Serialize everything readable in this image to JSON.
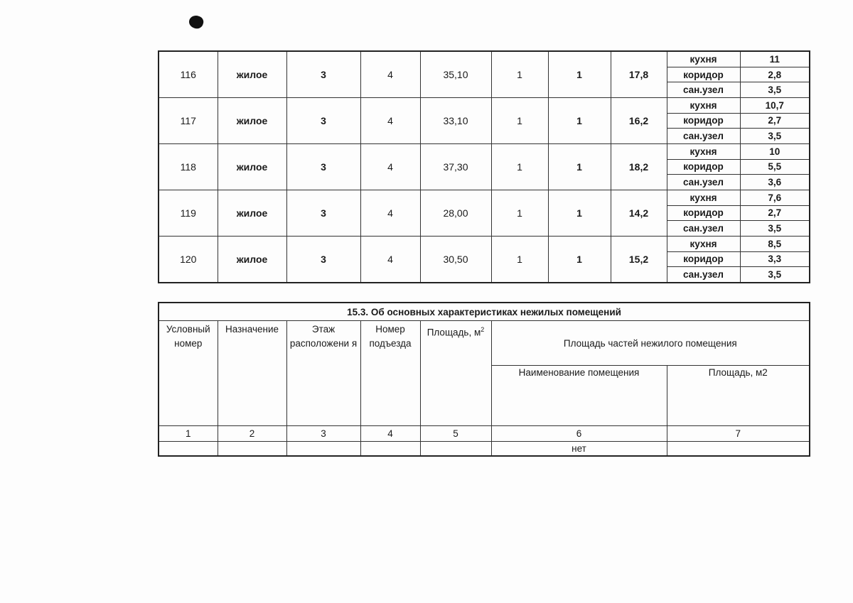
{
  "apartments": [
    {
      "number": "116",
      "purpose": "жилое",
      "floor": "3",
      "entrance": "4",
      "area": "35,10",
      "col6": "1",
      "col7": "1",
      "living": "17,8",
      "parts": [
        {
          "name": "кухня",
          "area": "11"
        },
        {
          "name": "коридор",
          "area": "2,8"
        },
        {
          "name": "сан.узел",
          "area": "3,5"
        }
      ]
    },
    {
      "number": "117",
      "purpose": "жилое",
      "floor": "3",
      "entrance": "4",
      "area": "33,10",
      "col6": "1",
      "col7": "1",
      "living": "16,2",
      "parts": [
        {
          "name": "кухня",
          "area": "10,7"
        },
        {
          "name": "коридор",
          "area": "2,7"
        },
        {
          "name": "сан.узел",
          "area": "3,5"
        }
      ]
    },
    {
      "number": "118",
      "purpose": "жилое",
      "floor": "3",
      "entrance": "4",
      "area": "37,30",
      "col6": "1",
      "col7": "1",
      "living": "18,2",
      "parts": [
        {
          "name": "кухня",
          "area": "10"
        },
        {
          "name": "коридор",
          "area": "5,5"
        },
        {
          "name": "сан.узел",
          "area": "3,6"
        }
      ]
    },
    {
      "number": "119",
      "purpose": "жилое",
      "floor": "3",
      "entrance": "4",
      "area": "28,00",
      "col6": "1",
      "col7": "1",
      "living": "14,2",
      "parts": [
        {
          "name": "кухня",
          "area": "7,6"
        },
        {
          "name": "коридор",
          "area": "2,7"
        },
        {
          "name": "сан.узел",
          "area": "3,5"
        }
      ]
    },
    {
      "number": "120",
      "purpose": "жилое",
      "floor": "3",
      "entrance": "4",
      "area": "30,50",
      "col6": "1",
      "col7": "1",
      "living": "15,2",
      "parts": [
        {
          "name": "кухня",
          "area": "8,5"
        },
        {
          "name": "коридор",
          "area": "3,3"
        },
        {
          "name": "сан.узел",
          "area": "3,5"
        }
      ]
    }
  ],
  "nonresidential": {
    "title": "15.3. Об основных характеристиках нежилых помещений",
    "headers": {
      "number": "Условный номер",
      "purpose": "Назначение",
      "floor": "Этаж расположени я",
      "entrance": "Номер подъезда",
      "area": "Площадь, м",
      "area_sup": "2",
      "parts": "Площадь частей нежилого помещения",
      "part_name": "Наименование помещения",
      "part_area": "Площадь, м2"
    },
    "column_numbers": [
      "1",
      "2",
      "3",
      "4",
      "5",
      "6",
      "7"
    ],
    "row": {
      "number": "",
      "purpose": "",
      "floor": "",
      "entrance": "",
      "area": "",
      "part_name": "нет",
      "part_area": ""
    }
  }
}
